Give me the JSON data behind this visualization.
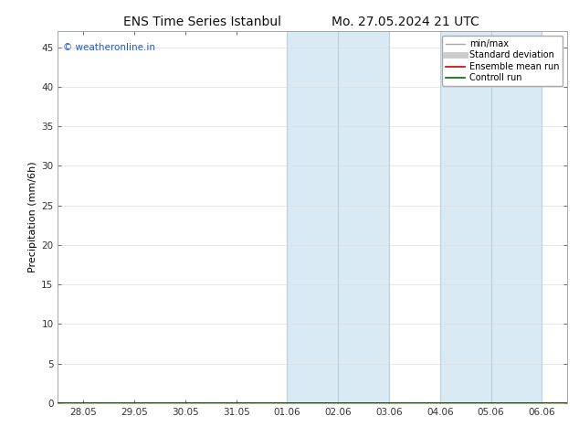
{
  "title_left": "ENS Time Series Istanbul",
  "title_right": "Mo. 27.05.2024 21 UTC",
  "ylabel": "Precipitation (mm/6h)",
  "xlabel": "",
  "background_color": "#ffffff",
  "plot_bg_color": "#ffffff",
  "xtick_labels": [
    "28.05",
    "29.05",
    "30.05",
    "31.05",
    "01.06",
    "02.06",
    "03.06",
    "04.06",
    "05.06",
    "06.06"
  ],
  "ylim": [
    0,
    47
  ],
  "yticks": [
    0,
    5,
    10,
    15,
    20,
    25,
    30,
    35,
    40,
    45
  ],
  "shaded_regions": [
    {
      "xmin": 4.0,
      "xmax": 5.0,
      "color": "#daeaf5"
    },
    {
      "xmin": 5.0,
      "xmax": 6.0,
      "color": "#daeaf5"
    },
    {
      "xmin": 7.0,
      "xmax": 8.0,
      "color": "#daeaf5"
    },
    {
      "xmin": 8.0,
      "xmax": 9.0,
      "color": "#daeaf5"
    }
  ],
  "shaded_vlines": [
    4.0,
    5.0,
    6.0,
    7.0,
    8.0,
    9.0
  ],
  "vline_color": "#b8d0e0",
  "watermark_text": "© weatheronline.in",
  "watermark_color": "#1a56db",
  "legend_items": [
    {
      "label": "min/max",
      "color": "#aaaaaa",
      "lw": 1.0
    },
    {
      "label": "Standard deviation",
      "color": "#cccccc",
      "lw": 5
    },
    {
      "label": "Ensemble mean run",
      "color": "#cc0000",
      "lw": 1.2
    },
    {
      "label": "Controll run",
      "color": "#006600",
      "lw": 1.2
    }
  ],
  "title_fontsize": 10,
  "axis_label_fontsize": 8,
  "tick_fontsize": 7.5,
  "watermark_fontsize": 7.5,
  "legend_fontsize": 7,
  "grid_color": "#dddddd",
  "spine_color": "#999999",
  "tick_color": "#555555"
}
